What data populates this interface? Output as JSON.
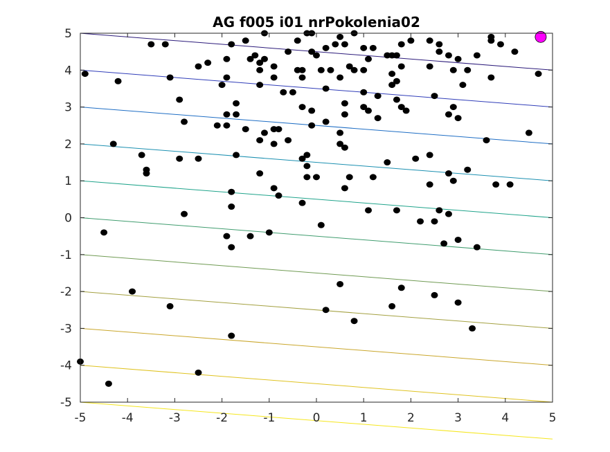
{
  "chart_data": {
    "type": "scatter",
    "title": "AG f005 i01 nrPokolenia02",
    "xlabel": "",
    "ylabel": "",
    "xlim": [
      -5,
      5
    ],
    "ylim": [
      -5,
      5
    ],
    "xticks": [
      "-5",
      "-4",
      "-3",
      "-2",
      "-1",
      "0",
      "1",
      "2",
      "3",
      "4",
      "5"
    ],
    "yticks": [
      "-5",
      "-4",
      "-3",
      "-2",
      "-1",
      "0",
      "1",
      "2",
      "3",
      "4",
      "5"
    ],
    "grid": false,
    "contour": {
      "levels": [
        -5,
        -4,
        -3,
        -2,
        -1,
        0,
        1,
        2,
        3,
        4,
        5
      ],
      "slope": -0.1,
      "colors": [
        "#f5e61c",
        "#dfc21f",
        "#c9a62a",
        "#a3a040",
        "#6f9a52",
        "#3f9c6e",
        "#1ea38a",
        "#1a8fb0",
        "#1d6dc4",
        "#2f3cb8",
        "#2b1a7a"
      ]
    },
    "population": {
      "color": "#000000",
      "points": [
        [
          -4.9,
          3.9
        ],
        [
          -4.2,
          3.7
        ],
        [
          -3.5,
          4.7
        ],
        [
          -3.2,
          4.7
        ],
        [
          -3.1,
          3.8
        ],
        [
          -2.9,
          3.2
        ],
        [
          -2.5,
          4.1
        ],
        [
          -2.3,
          4.2
        ],
        [
          -2.0,
          3.6
        ],
        [
          -1.8,
          4.7
        ],
        [
          -1.9,
          4.3
        ],
        [
          -1.9,
          3.8
        ],
        [
          -1.7,
          3.1
        ],
        [
          -1.5,
          4.8
        ],
        [
          -1.4,
          4.3
        ],
        [
          -1.3,
          4.4
        ],
        [
          -1.2,
          4.0
        ],
        [
          -1.2,
          4.2
        ],
        [
          -1.2,
          3.6
        ],
        [
          -1.1,
          4.3
        ],
        [
          -1.1,
          5.0
        ],
        [
          -0.9,
          3.8
        ],
        [
          -0.9,
          4.1
        ],
        [
          -0.7,
          3.4
        ],
        [
          -0.5,
          3.4
        ],
        [
          -0.6,
          4.5
        ],
        [
          -0.4,
          4.0
        ],
        [
          -0.4,
          4.8
        ],
        [
          -0.3,
          4.0
        ],
        [
          -0.3,
          3.8
        ],
        [
          -0.2,
          5.0
        ],
        [
          -0.1,
          5.0
        ],
        [
          -0.1,
          4.5
        ],
        [
          0.0,
          4.4
        ],
        [
          0.1,
          4.0
        ],
        [
          0.2,
          4.6
        ],
        [
          0.3,
          4.0
        ],
        [
          0.4,
          4.7
        ],
        [
          0.5,
          4.9
        ],
        [
          0.5,
          3.8
        ],
        [
          0.6,
          4.7
        ],
        [
          0.7,
          4.1
        ],
        [
          0.8,
          4.0
        ],
        [
          0.8,
          5.0
        ],
        [
          1.0,
          4.6
        ],
        [
          1.0,
          4.0
        ],
        [
          1.1,
          4.3
        ],
        [
          1.2,
          4.6
        ],
        [
          1.5,
          4.4
        ],
        [
          1.6,
          4.4
        ],
        [
          1.7,
          4.4
        ],
        [
          1.8,
          4.1
        ],
        [
          1.6,
          3.9
        ],
        [
          1.6,
          3.6
        ],
        [
          1.7,
          3.7
        ],
        [
          1.8,
          4.7
        ],
        [
          2.0,
          4.8
        ],
        [
          2.4,
          4.8
        ],
        [
          2.6,
          4.7
        ],
        [
          2.6,
          4.5
        ],
        [
          2.4,
          4.1
        ],
        [
          2.5,
          3.3
        ],
        [
          2.8,
          4.4
        ],
        [
          2.9,
          4.0
        ],
        [
          3.0,
          4.3
        ],
        [
          3.1,
          3.6
        ],
        [
          3.2,
          4.0
        ],
        [
          3.4,
          4.4
        ],
        [
          3.7,
          4.8
        ],
        [
          3.7,
          3.8
        ],
        [
          3.7,
          4.9
        ],
        [
          3.9,
          4.7
        ],
        [
          4.2,
          4.5
        ],
        [
          4.7,
          3.9
        ],
        [
          4.7,
          4.9
        ],
        [
          -2.8,
          2.6
        ],
        [
          -2.1,
          2.5
        ],
        [
          -1.9,
          2.8
        ],
        [
          -1.7,
          2.8
        ],
        [
          -1.9,
          2.5
        ],
        [
          -1.5,
          2.4
        ],
        [
          -1.2,
          2.1
        ],
        [
          -1.1,
          2.3
        ],
        [
          -0.9,
          2.0
        ],
        [
          -0.8,
          2.4
        ],
        [
          -0.9,
          2.4
        ],
        [
          -0.6,
          2.1
        ],
        [
          -0.3,
          3.0
        ],
        [
          -0.1,
          2.9
        ],
        [
          -0.1,
          2.5
        ],
        [
          0.2,
          2.6
        ],
        [
          0.2,
          3.5
        ],
        [
          0.5,
          2.3
        ],
        [
          0.6,
          3.1
        ],
        [
          0.6,
          2.8
        ],
        [
          1.0,
          3.4
        ],
        [
          1.0,
          3.0
        ],
        [
          1.1,
          2.9
        ],
        [
          1.3,
          2.7
        ],
        [
          1.3,
          3.3
        ],
        [
          1.7,
          3.2
        ],
        [
          1.8,
          3.0
        ],
        [
          1.9,
          2.9
        ],
        [
          2.8,
          2.8
        ],
        [
          2.9,
          3.0
        ],
        [
          3.0,
          2.7
        ],
        [
          3.6,
          2.1
        ],
        [
          4.5,
          2.3
        ],
        [
          -4.3,
          2.0
        ],
        [
          -3.7,
          1.7
        ],
        [
          -3.6,
          1.3
        ],
        [
          -3.6,
          1.2
        ],
        [
          -2.9,
          1.6
        ],
        [
          -2.5,
          1.6
        ],
        [
          -1.7,
          1.7
        ],
        [
          -1.8,
          0.7
        ],
        [
          -1.2,
          1.2
        ],
        [
          -0.9,
          0.8
        ],
        [
          -0.8,
          0.6
        ],
        [
          -0.3,
          1.6
        ],
        [
          -0.2,
          1.7
        ],
        [
          -0.2,
          1.4
        ],
        [
          -0.2,
          1.1
        ],
        [
          0.0,
          1.1
        ],
        [
          0.5,
          2.0
        ],
        [
          0.6,
          1.9
        ],
        [
          0.6,
          0.8
        ],
        [
          0.7,
          1.1
        ],
        [
          1.2,
          1.1
        ],
        [
          1.5,
          1.5
        ],
        [
          2.1,
          1.6
        ],
        [
          2.4,
          1.7
        ],
        [
          2.4,
          0.9
        ],
        [
          2.8,
          1.2
        ],
        [
          2.9,
          1.0
        ],
        [
          3.2,
          1.3
        ],
        [
          3.8,
          0.9
        ],
        [
          4.1,
          0.9
        ],
        [
          -2.8,
          0.1
        ],
        [
          -1.8,
          0.3
        ],
        [
          -4.5,
          -0.4
        ],
        [
          -1.9,
          -0.5
        ],
        [
          -1.8,
          -0.8
        ],
        [
          -1.4,
          -0.5
        ],
        [
          -1.0,
          -0.4
        ],
        [
          -0.3,
          0.4
        ],
        [
          0.1,
          -0.2
        ],
        [
          1.1,
          0.2
        ],
        [
          1.7,
          0.2
        ],
        [
          2.2,
          -0.1
        ],
        [
          2.5,
          -0.1
        ],
        [
          2.6,
          0.2
        ],
        [
          2.8,
          0.1
        ],
        [
          2.7,
          -0.7
        ],
        [
          3.0,
          -0.6
        ],
        [
          3.4,
          -0.8
        ],
        [
          -3.9,
          -2.0
        ],
        [
          -3.1,
          -2.4
        ],
        [
          0.2,
          -2.5
        ],
        [
          0.5,
          -1.8
        ],
        [
          0.8,
          -2.8
        ],
        [
          1.6,
          -2.4
        ],
        [
          1.8,
          -1.9
        ],
        [
          2.5,
          -2.1
        ],
        [
          3.0,
          -2.3
        ],
        [
          3.3,
          -3.0
        ],
        [
          -1.8,
          -3.2
        ],
        [
          -5.0,
          -3.9
        ],
        [
          -4.4,
          -4.5
        ],
        [
          -2.5,
          -4.2
        ]
      ]
    },
    "best": {
      "point": [
        4.75,
        4.9
      ],
      "color": "#ff00ff"
    }
  }
}
